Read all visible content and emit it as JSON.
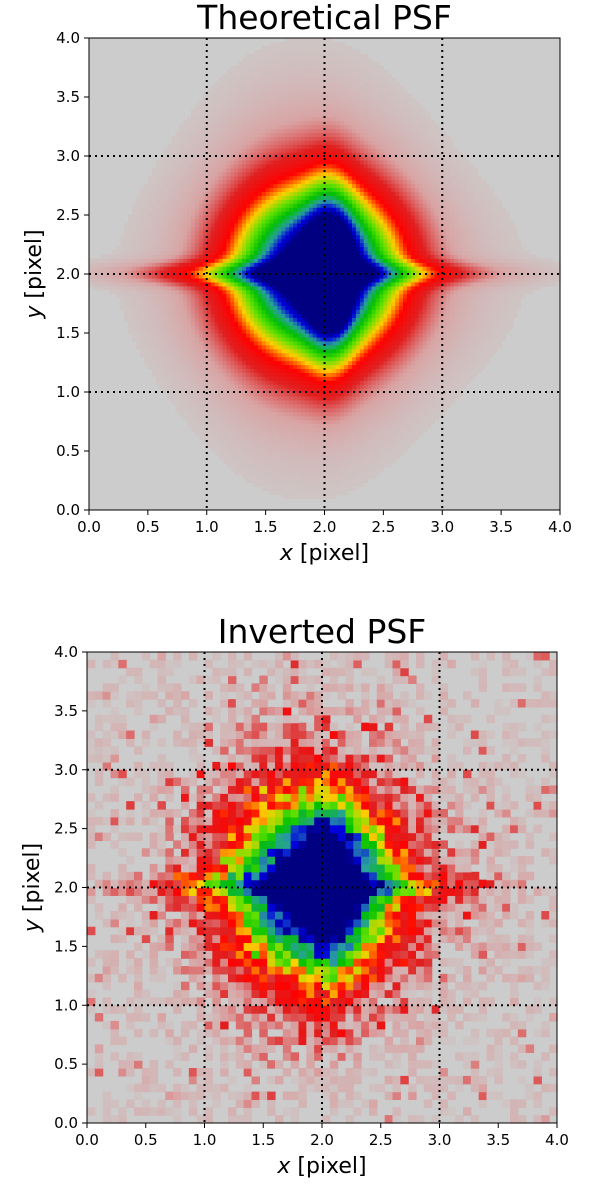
{
  "chart_data": [
    {
      "type": "heatmap",
      "title": "Theoretical PSF",
      "xlabel_var": "x",
      "xlabel_unit": " [pixel]",
      "ylabel_var": "y",
      "ylabel_unit": " [pixel]",
      "xlim": [
        0.0,
        4.0
      ],
      "ylim": [
        0.0,
        4.0
      ],
      "xticks": [
        "0.0",
        "0.5",
        "1.0",
        "1.5",
        "2.0",
        "2.5",
        "3.0",
        "3.5",
        "4.0"
      ],
      "yticks": [
        "0.0",
        "0.5",
        "1.0",
        "1.5",
        "2.0",
        "2.5",
        "3.0",
        "3.5",
        "4.0"
      ],
      "grid": "dotted at integer pixel boundaries 1, 2, 3",
      "background_color": "#cccccc",
      "colormap": [
        "#cccccc",
        "#d9a3a3",
        "#e02020",
        "#ff0000",
        "#ffd000",
        "#5fe000",
        "#00c000",
        "#2aa0a0",
        "#0000dd",
        "#000080"
      ],
      "peaks": [
        {
          "x": 1.72,
          "y": 2.01,
          "level": 1.0
        },
        {
          "x": 2.02,
          "y": 2.01,
          "level": 1.0
        },
        {
          "x": 2.05,
          "y": 2.32,
          "level": 0.85
        },
        {
          "x": 2.05,
          "y": 1.65,
          "level": 0.85
        }
      ],
      "style": "smooth"
    },
    {
      "type": "heatmap",
      "title": "Inverted PSF",
      "xlabel_var": "x",
      "xlabel_unit": " [pixel]",
      "ylabel_var": "y",
      "ylabel_unit": " [pixel]",
      "xlim": [
        0.0,
        4.0
      ],
      "ylim": [
        0.0,
        4.0
      ],
      "xticks": [
        "0.0",
        "0.5",
        "1.0",
        "1.5",
        "2.0",
        "2.5",
        "3.0",
        "3.5",
        "4.0"
      ],
      "yticks": [
        "0.0",
        "0.5",
        "1.0",
        "1.5",
        "2.0",
        "2.5",
        "3.0",
        "3.5",
        "4.0"
      ],
      "grid": "dotted at integer pixel boundaries 1, 2, 3",
      "background_color": "#cccccc",
      "colormap": [
        "#cccccc",
        "#d9a3a3",
        "#e02020",
        "#ff0000",
        "#ffd000",
        "#5fe000",
        "#00c000",
        "#2aa0a0",
        "#0000dd",
        "#000080"
      ],
      "peaks": [
        {
          "x": 1.72,
          "y": 2.01,
          "level": 1.0
        },
        {
          "x": 2.0,
          "y": 2.01,
          "level": 1.0
        }
      ],
      "style": "pixelated"
    }
  ]
}
